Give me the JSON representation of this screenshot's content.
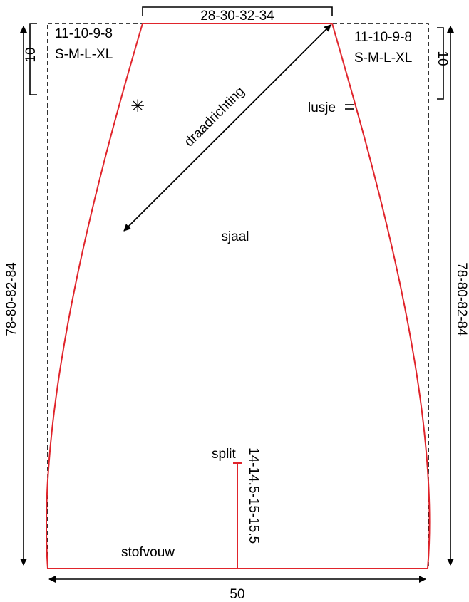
{
  "pattern": {
    "piece_name": "sjaal",
    "top_width": "28-30-32-34",
    "bottom_width": "50",
    "left_height": "78-80-82-84",
    "right_height": "78-80-82-84",
    "corner_offset_left": "11-10-9-8",
    "corner_offset_right": "11-10-9-8",
    "sizes_left": "S-M-L-XL",
    "sizes_right": "S-M-L-XL",
    "corner_drop_left": "10",
    "corner_drop_right": "10",
    "grain_label": "draadrichting",
    "loop_label": "lusje",
    "split_label": "split",
    "split_length": "14-14.5-15-15.5",
    "fold_label": "stofvouw",
    "mark_symbol": "✳"
  },
  "colors": {
    "outline": "#e0242b",
    "guide": "#000000"
  }
}
